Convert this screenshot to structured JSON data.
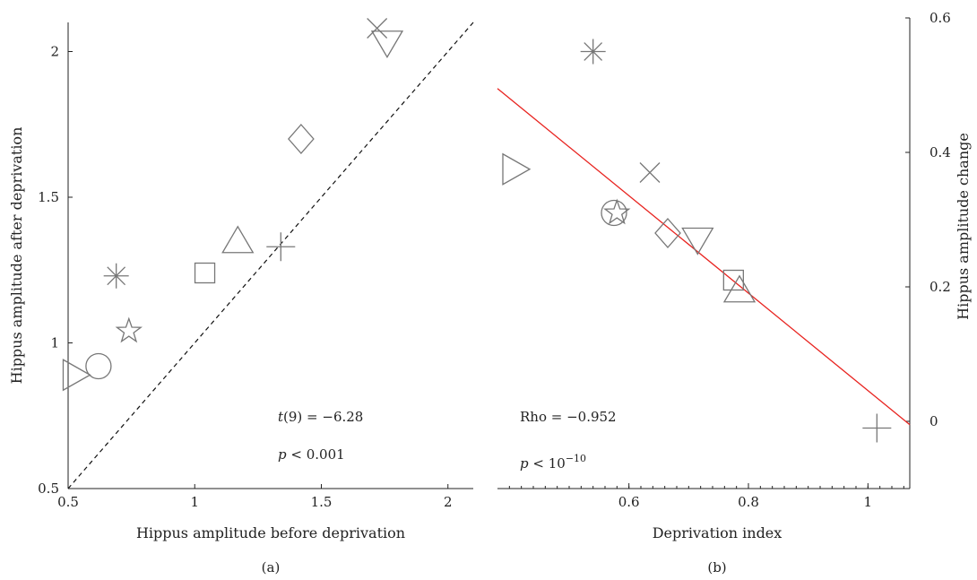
{
  "chart_data": [
    {
      "panel": "(a)",
      "type": "scatter",
      "xlabel": "Hippus amplitude before deprivation",
      "ylabel": "Hippus amplitude after deprivation",
      "xlim": [
        0.5,
        2.1
      ],
      "ylim": [
        0.5,
        2.1
      ],
      "xticks": [
        0.5,
        1,
        1.5,
        2
      ],
      "yticks": [
        0.5,
        1,
        1.5,
        2
      ],
      "reference_line": {
        "style": "dashed",
        "color": "#111111",
        "points": [
          [
            0.5,
            0.5
          ],
          [
            2.1,
            2.1
          ]
        ]
      },
      "points": [
        {
          "marker": "triangle-right",
          "x": 0.53,
          "y": 0.89
        },
        {
          "marker": "circle",
          "x": 0.62,
          "y": 0.92
        },
        {
          "marker": "star",
          "x": 0.74,
          "y": 1.04
        },
        {
          "marker": "asterisk",
          "x": 0.69,
          "y": 1.23
        },
        {
          "marker": "square",
          "x": 1.04,
          "y": 1.24
        },
        {
          "marker": "triangle-up",
          "x": 1.17,
          "y": 1.35
        },
        {
          "marker": "plus",
          "x": 1.34,
          "y": 1.33
        },
        {
          "marker": "diamond",
          "x": 1.42,
          "y": 1.7
        },
        {
          "marker": "cross",
          "x": 1.72,
          "y": 2.08
        },
        {
          "marker": "triangle-down",
          "x": 1.76,
          "y": 2.03
        }
      ],
      "annotations": [
        {
          "id": "stat",
          "text": "t(9) = −6.28"
        },
        {
          "id": "pval",
          "text": "p < 0.001"
        }
      ]
    },
    {
      "panel": "(b)",
      "type": "scatter",
      "xlabel": "Deprivation index",
      "ylabel": "Hippus amplitude change",
      "xlim": [
        0.38,
        1.07
      ],
      "ylim": [
        -0.1,
        0.6
      ],
      "xticks": [
        0.6,
        0.8,
        1
      ],
      "yticks": [
        0,
        0.2,
        0.4,
        0.6
      ],
      "y_axis_side": "right",
      "fit_line": {
        "color": "#e8231f",
        "points": [
          [
            0.38,
            0.495
          ],
          [
            1.07,
            -0.005
          ]
        ]
      },
      "points": [
        {
          "marker": "triangle-right",
          "x": 0.41,
          "y": 0.375
        },
        {
          "marker": "asterisk",
          "x": 0.54,
          "y": 0.55
        },
        {
          "marker": "circle",
          "x": 0.575,
          "y": 0.31
        },
        {
          "marker": "star",
          "x": 0.58,
          "y": 0.31
        },
        {
          "marker": "cross",
          "x": 0.635,
          "y": 0.37
        },
        {
          "marker": "diamond",
          "x": 0.665,
          "y": 0.28
        },
        {
          "marker": "triangle-down",
          "x": 0.715,
          "y": 0.27
        },
        {
          "marker": "square",
          "x": 0.775,
          "y": 0.21
        },
        {
          "marker": "triangle-up",
          "x": 0.785,
          "y": 0.195
        },
        {
          "marker": "plus",
          "x": 1.015,
          "y": -0.01
        }
      ],
      "annotations": [
        {
          "id": "rho",
          "text": "Rho = −0.952"
        },
        {
          "id": "pval",
          "text": "p < 10",
          "superscript": "−10"
        }
      ]
    }
  ],
  "captions": {
    "a": "(a)",
    "b": "(b)"
  },
  "colors": {
    "marker": "#777777",
    "axis": "#222222",
    "fit": "#e8231f",
    "reference": "#111111"
  }
}
